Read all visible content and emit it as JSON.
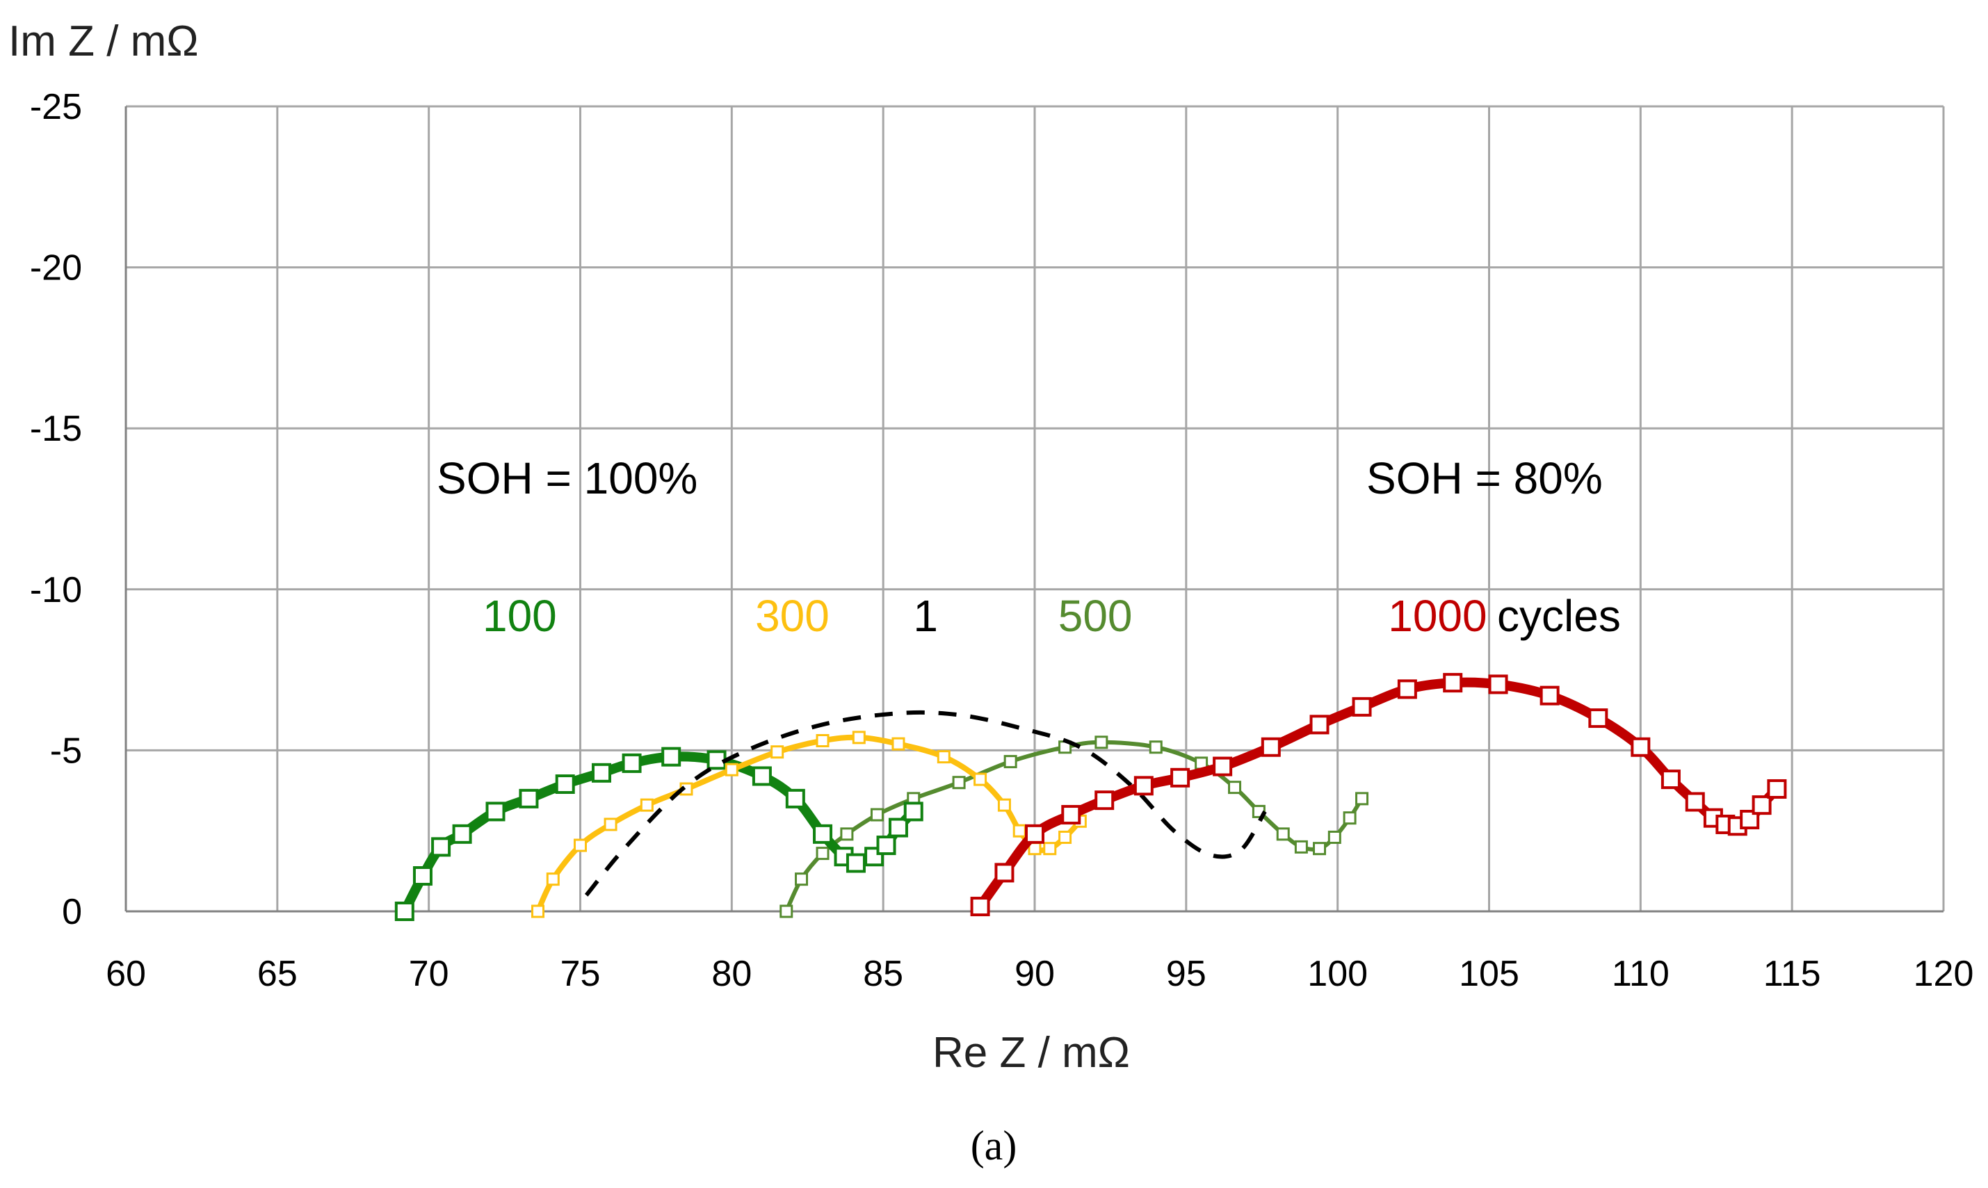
{
  "chart_data": {
    "type": "line",
    "xlabel": "Re Z / mΩ",
    "ylabel": "Im Z / mΩ",
    "xlim": [
      60,
      120
    ],
    "ylim": [
      0,
      -25
    ],
    "xticks": [
      "60",
      "65",
      "70",
      "75",
      "80",
      "85",
      "90",
      "95",
      "100",
      "105",
      "110",
      "115",
      "120"
    ],
    "yticks": [
      "0",
      "-5",
      "-10",
      "-15",
      "-20",
      "-25"
    ],
    "grid": true,
    "caption": "(a)",
    "annotations": {
      "soh_left": "SOH = 100%",
      "soh_right": "SOH = 80%",
      "cycles_suffix": "cycles"
    },
    "series": [
      {
        "name": "1",
        "color": "#000000",
        "style": "dashed",
        "markers": false,
        "label_x": 86.4,
        "points": [
          [
            75.2,
            -0.5
          ],
          [
            76.5,
            -2.0
          ],
          [
            78.5,
            -3.9
          ],
          [
            80.5,
            -5.0
          ],
          [
            83,
            -5.8
          ],
          [
            85.5,
            -6.15
          ],
          [
            87.5,
            -6.1
          ],
          [
            89.5,
            -5.7
          ],
          [
            91.5,
            -5.1
          ],
          [
            93.2,
            -3.9
          ],
          [
            94.6,
            -2.5
          ],
          [
            95.8,
            -1.75
          ],
          [
            96.8,
            -1.9
          ],
          [
            97.6,
            -3.1
          ]
        ]
      },
      {
        "name": "100",
        "color": "#118211",
        "style": "solid",
        "markers": true,
        "label_x": 73.0,
        "points": [
          [
            69.2,
            0
          ],
          [
            69.8,
            -1.1
          ],
          [
            70.4,
            -2.0
          ],
          [
            71.1,
            -2.4
          ],
          [
            72.2,
            -3.1
          ],
          [
            73.3,
            -3.5
          ],
          [
            74.5,
            -3.95
          ],
          [
            75.7,
            -4.3
          ],
          [
            76.7,
            -4.6
          ],
          [
            78.0,
            -4.8
          ],
          [
            79.5,
            -4.7
          ],
          [
            81.0,
            -4.2
          ],
          [
            82.1,
            -3.5
          ],
          [
            83.0,
            -2.4
          ],
          [
            83.7,
            -1.7
          ],
          [
            84.1,
            -1.5
          ],
          [
            84.7,
            -1.7
          ],
          [
            85.1,
            -2.05
          ],
          [
            85.5,
            -2.6
          ],
          [
            86.0,
            -3.1
          ]
        ]
      },
      {
        "name": "300",
        "color": "#fdc010",
        "style": "solid",
        "markers": true,
        "label_x": 82.0,
        "points": [
          [
            73.6,
            0
          ],
          [
            74.1,
            -1.0
          ],
          [
            75.0,
            -2.05
          ],
          [
            76.0,
            -2.7
          ],
          [
            77.2,
            -3.3
          ],
          [
            78.5,
            -3.8
          ],
          [
            80.0,
            -4.4
          ],
          [
            81.5,
            -4.95
          ],
          [
            83.0,
            -5.3
          ],
          [
            84.2,
            -5.4
          ],
          [
            85.5,
            -5.2
          ],
          [
            87.0,
            -4.8
          ],
          [
            88.2,
            -4.1
          ],
          [
            89.0,
            -3.3
          ],
          [
            89.5,
            -2.5
          ],
          [
            90.0,
            -1.95
          ],
          [
            90.5,
            -1.95
          ],
          [
            91.0,
            -2.3
          ],
          [
            91.5,
            -2.8
          ]
        ]
      },
      {
        "name": "500",
        "color": "#558b2f",
        "style": "solid",
        "markers": true,
        "label_x": 92.0,
        "points": [
          [
            81.8,
            0
          ],
          [
            82.3,
            -1.0
          ],
          [
            83.0,
            -1.8
          ],
          [
            83.8,
            -2.4
          ],
          [
            84.8,
            -3.0
          ],
          [
            86.0,
            -3.5
          ],
          [
            87.5,
            -4.0
          ],
          [
            89.2,
            -4.65
          ],
          [
            91.0,
            -5.1
          ],
          [
            92.2,
            -5.25
          ],
          [
            94.0,
            -5.1
          ],
          [
            95.5,
            -4.6
          ],
          [
            96.6,
            -3.85
          ],
          [
            97.4,
            -3.1
          ],
          [
            98.2,
            -2.4
          ],
          [
            98.8,
            -2.0
          ],
          [
            99.4,
            -1.95
          ],
          [
            99.9,
            -2.3
          ],
          [
            100.4,
            -2.9
          ],
          [
            100.8,
            -3.5
          ]
        ]
      },
      {
        "name": "1000",
        "color": "#c00000",
        "style": "solid",
        "markers": true,
        "label_x": 103.3,
        "points": [
          [
            88.2,
            -0.15
          ],
          [
            89.0,
            -1.2
          ],
          [
            90.0,
            -2.4
          ],
          [
            91.2,
            -3.0
          ],
          [
            92.3,
            -3.45
          ],
          [
            93.6,
            -3.9
          ],
          [
            94.8,
            -4.15
          ],
          [
            96.2,
            -4.5
          ],
          [
            97.8,
            -5.1
          ],
          [
            99.4,
            -5.8
          ],
          [
            100.8,
            -6.35
          ],
          [
            102.3,
            -6.9
          ],
          [
            103.8,
            -7.1
          ],
          [
            105.3,
            -7.05
          ],
          [
            107.0,
            -6.7
          ],
          [
            108.6,
            -6.0
          ],
          [
            110.0,
            -5.1
          ],
          [
            111.0,
            -4.1
          ],
          [
            111.8,
            -3.4
          ],
          [
            112.4,
            -2.9
          ],
          [
            112.8,
            -2.7
          ],
          [
            113.2,
            -2.65
          ],
          [
            113.6,
            -2.85
          ],
          [
            114.0,
            -3.3
          ],
          [
            114.5,
            -3.8
          ]
        ]
      }
    ]
  }
}
